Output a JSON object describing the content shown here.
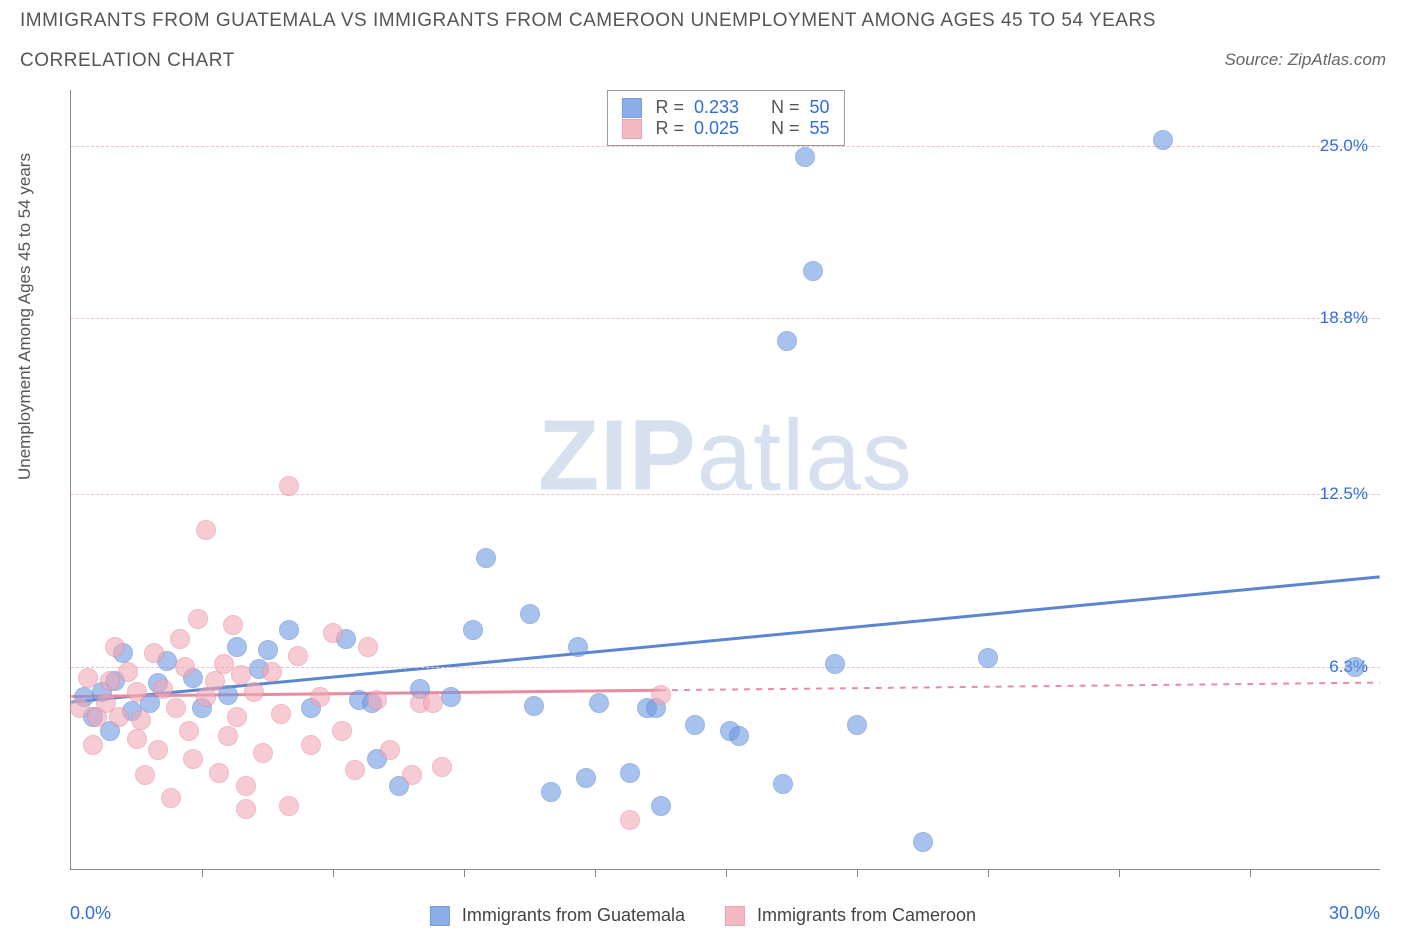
{
  "title_line1": "IMMIGRANTS FROM GUATEMALA VS IMMIGRANTS FROM CAMEROON UNEMPLOYMENT AMONG AGES 45 TO 54 YEARS",
  "title_line2": "CORRELATION CHART",
  "source_text": "Source: ZipAtlas.com",
  "y_axis_label": "Unemployment Among Ages 45 to 54 years",
  "watermark_bold": "ZIP",
  "watermark_light": "atlas",
  "chart": {
    "type": "scatter",
    "x_min": 0.0,
    "x_max": 30.0,
    "y_min": -1.0,
    "y_max": 27.0,
    "x_min_label": "0.0%",
    "x_max_label": "30.0%",
    "x_min_label_color": "#2e6fd8",
    "x_max_label_color": "#2e6fd8",
    "x_tick_positions": [
      3.0,
      6.0,
      9.0,
      12.0,
      15.0,
      18.0,
      21.0,
      24.0,
      27.0
    ],
    "y_ticks": [
      {
        "value": 6.3,
        "label": "6.3%"
      },
      {
        "value": 12.5,
        "label": "12.5%"
      },
      {
        "value": 18.8,
        "label": "18.8%"
      },
      {
        "value": 25.0,
        "label": "25.0%"
      }
    ],
    "y_tick_label_color": "#2e6fd8",
    "grid_color": "#f2bfc9",
    "background_color": "#ffffff",
    "point_radius": 10,
    "point_border_width": 1.5,
    "point_fill_opacity": 0.25,
    "trend_line_width": 3
  },
  "series": [
    {
      "name": "Immigrants from Guatemala",
      "color": "#6f9ae3",
      "border_color": "#5b86cf",
      "R": "0.233",
      "N": "50",
      "trend": {
        "x1": 0.0,
        "y1": 5.0,
        "x2": 30.0,
        "y2": 9.5,
        "solid_until_x": 30.0
      },
      "points": [
        [
          0.3,
          5.2
        ],
        [
          0.5,
          4.5
        ],
        [
          0.7,
          5.4
        ],
        [
          0.9,
          4.0
        ],
        [
          1.0,
          5.8
        ],
        [
          1.2,
          6.8
        ],
        [
          1.4,
          4.7
        ],
        [
          1.8,
          5.0
        ],
        [
          2.0,
          5.7
        ],
        [
          2.2,
          6.5
        ],
        [
          2.8,
          5.9
        ],
        [
          3.0,
          4.8
        ],
        [
          3.6,
          5.3
        ],
        [
          4.3,
          6.2
        ],
        [
          5.0,
          7.6
        ],
        [
          5.5,
          4.8
        ],
        [
          6.6,
          5.1
        ],
        [
          6.9,
          5.0
        ],
        [
          6.3,
          7.3
        ],
        [
          7.0,
          3.0
        ],
        [
          7.5,
          2.0
        ],
        [
          8.0,
          5.5
        ],
        [
          8.7,
          5.2
        ],
        [
          9.2,
          7.6
        ],
        [
          9.5,
          10.2
        ],
        [
          10.6,
          4.9
        ],
        [
          10.5,
          8.2
        ],
        [
          11.0,
          1.8
        ],
        [
          11.6,
          7.0
        ],
        [
          11.8,
          2.3
        ],
        [
          12.1,
          5.0
        ],
        [
          12.8,
          2.5
        ],
        [
          13.2,
          4.8
        ],
        [
          13.4,
          4.8
        ],
        [
          13.5,
          1.3
        ],
        [
          14.3,
          4.2
        ],
        [
          15.1,
          4.0
        ],
        [
          15.3,
          3.8
        ],
        [
          16.3,
          2.1
        ],
        [
          16.4,
          18.0
        ],
        [
          16.8,
          24.6
        ],
        [
          17.0,
          20.5
        ],
        [
          17.5,
          6.4
        ],
        [
          18.0,
          4.2
        ],
        [
          19.5,
          0.0
        ],
        [
          21.0,
          6.6
        ],
        [
          29.4,
          6.3
        ],
        [
          4.5,
          6.9
        ],
        [
          3.8,
          7.0
        ],
        [
          25.0,
          25.2
        ]
      ]
    },
    {
      "name": "Immigrants from Cameroon",
      "color": "#f2a9b6",
      "border_color": "#e88ca0",
      "R": "0.025",
      "N": "55",
      "trend": {
        "x1": 0.0,
        "y1": 5.2,
        "x2": 30.0,
        "y2": 5.7,
        "solid_until_x": 13.5
      },
      "points": [
        [
          0.2,
          4.8
        ],
        [
          0.4,
          5.9
        ],
        [
          0.5,
          3.5
        ],
        [
          0.6,
          4.5
        ],
        [
          0.8,
          5.0
        ],
        [
          0.9,
          5.8
        ],
        [
          1.1,
          4.5
        ],
        [
          1.0,
          7.0
        ],
        [
          1.3,
          6.1
        ],
        [
          1.5,
          3.7
        ],
        [
          1.5,
          5.4
        ],
        [
          1.6,
          4.4
        ],
        [
          1.7,
          2.4
        ],
        [
          1.9,
          6.8
        ],
        [
          2.0,
          3.3
        ],
        [
          2.1,
          5.5
        ],
        [
          2.3,
          1.6
        ],
        [
          2.4,
          4.8
        ],
        [
          2.5,
          7.3
        ],
        [
          2.6,
          6.3
        ],
        [
          2.7,
          4.0
        ],
        [
          2.8,
          3.0
        ],
        [
          2.9,
          8.0
        ],
        [
          3.1,
          5.2
        ],
        [
          3.1,
          11.2
        ],
        [
          3.3,
          5.8
        ],
        [
          3.4,
          2.5
        ],
        [
          3.5,
          6.4
        ],
        [
          3.6,
          3.8
        ],
        [
          3.7,
          7.8
        ],
        [
          3.8,
          4.5
        ],
        [
          3.9,
          6.0
        ],
        [
          4.0,
          2.0
        ],
        [
          4.2,
          5.4
        ],
        [
          4.4,
          3.2
        ],
        [
          4.6,
          6.1
        ],
        [
          4.8,
          4.6
        ],
        [
          5.0,
          1.3
        ],
        [
          5.2,
          6.7
        ],
        [
          5.5,
          3.5
        ],
        [
          5.7,
          5.2
        ],
        [
          5.0,
          12.8
        ],
        [
          6.0,
          7.5
        ],
        [
          6.2,
          4.0
        ],
        [
          6.5,
          2.6
        ],
        [
          6.8,
          7.0
        ],
        [
          7.0,
          5.1
        ],
        [
          7.3,
          3.3
        ],
        [
          7.8,
          2.4
        ],
        [
          8.0,
          5.0
        ],
        [
          8.3,
          5.0
        ],
        [
          8.5,
          2.7
        ],
        [
          12.8,
          0.8
        ],
        [
          13.5,
          5.3
        ],
        [
          4.0,
          1.2
        ]
      ]
    }
  ],
  "legend_stats": {
    "r_label": "R =",
    "n_label": "N ="
  },
  "bottom_legend_labels": [
    "Immigrants from Guatemala",
    "Immigrants from Cameroon"
  ]
}
